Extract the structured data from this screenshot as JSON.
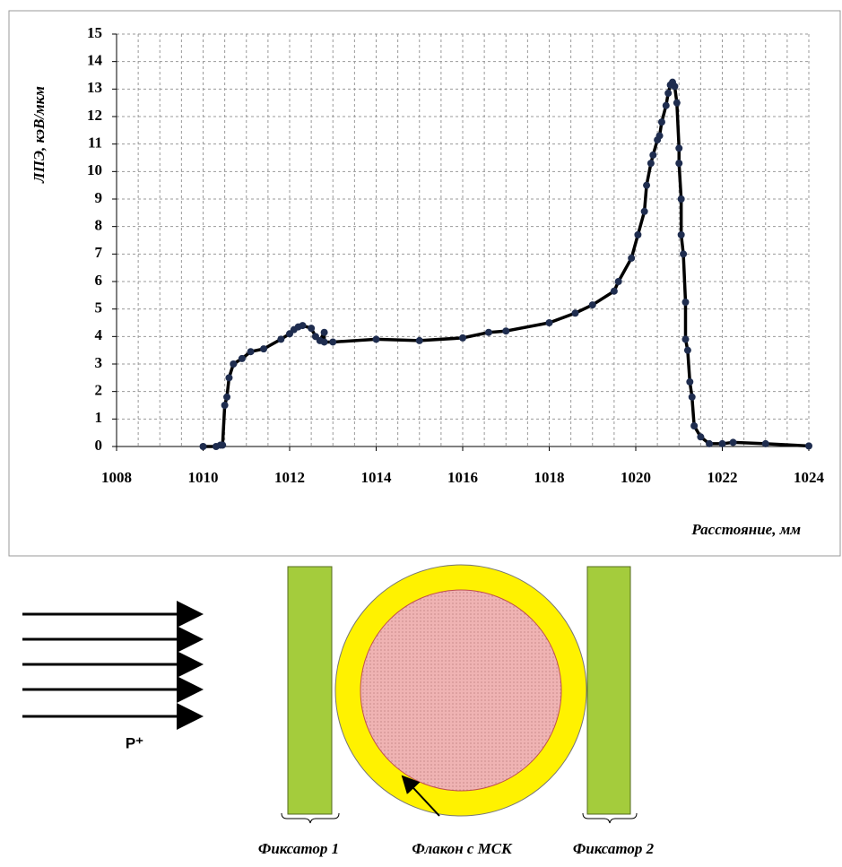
{
  "chart_data": {
    "type": "line",
    "y_label": "ЛПЭ, кэВ/мкм",
    "x_label": "Расстояние, мм",
    "x": [
      1010,
      1010.3,
      1010.4,
      1010.45,
      1010.5,
      1010.55,
      1010.6,
      1010.7,
      1010.9,
      1011.1,
      1011.4,
      1011.8,
      1012.0,
      1012.1,
      1012.2,
      1012.3,
      1012.5,
      1012.6,
      1012.7,
      1012.8,
      1012.8,
      1013,
      1014,
      1015,
      1016,
      1016.6,
      1017,
      1018,
      1018.6,
      1019,
      1019.5,
      1019.6,
      1019.9,
      1020.05,
      1020.2,
      1020.25,
      1020.35,
      1020.4,
      1020.5,
      1020.55,
      1020.6,
      1020.7,
      1020.75,
      1020.8,
      1020.85,
      1020.9,
      1020.95,
      1021.0,
      1021.0,
      1021.05,
      1021.05,
      1021.1,
      1021.15,
      1021.15,
      1021.2,
      1021.25,
      1021.3,
      1021.35,
      1021.5,
      1021.7,
      1022.0,
      1022.25,
      1023,
      1024
    ],
    "series": [
      {
        "color": "#000000",
        "marker_color": "#1f2d4f",
        "values": [
          0,
          0,
          0.05,
          0.05,
          1.5,
          1.8,
          2.5,
          3.0,
          3.2,
          3.45,
          3.55,
          3.9,
          4.1,
          4.25,
          4.35,
          4.4,
          4.3,
          4.0,
          3.85,
          4.15,
          3.8,
          3.8,
          3.9,
          3.85,
          3.95,
          4.15,
          4.2,
          4.5,
          4.85,
          5.15,
          5.65,
          6.0,
          6.85,
          7.7,
          8.55,
          9.5,
          10.3,
          10.6,
          11.15,
          11.3,
          11.8,
          12.4,
          12.85,
          13.15,
          13.25,
          13.1,
          12.5,
          10.85,
          10.3,
          9.0,
          7.7,
          7.0,
          5.25,
          3.9,
          3.5,
          2.35,
          1.8,
          0.75,
          0.35,
          0.1,
          0.1,
          0.15,
          0.1,
          0.02
        ]
      }
    ],
    "xlim": [
      1008,
      1024
    ],
    "xticks": [
      1008,
      1010,
      1012,
      1014,
      1016,
      1018,
      1020,
      1022,
      1024
    ],
    "xgrid": [
      1008.5,
      1009,
      1009.5,
      1010,
      1010.5,
      1011,
      1011.5,
      1012,
      1012.5,
      1013,
      1013.5,
      1014,
      1014.5,
      1015,
      1015.5,
      1016,
      1016.5,
      1017,
      1017.5,
      1018,
      1018.5,
      1019,
      1019.5,
      1020,
      1020.5,
      1021,
      1021.5,
      1022,
      1022.5,
      1023,
      1023.5,
      1024
    ],
    "ylim": [
      0,
      15
    ],
    "yticks": [
      0,
      1,
      2,
      3,
      4,
      5,
      6,
      7,
      8,
      9,
      10,
      11,
      12,
      13,
      14,
      15
    ],
    "grid": true
  },
  "diagram": {
    "beam_label": "P⁺",
    "fixator_1": "Фиксатор 1",
    "vial": "Флакон с МСК",
    "fixator_2": "Фиксатор 2"
  }
}
